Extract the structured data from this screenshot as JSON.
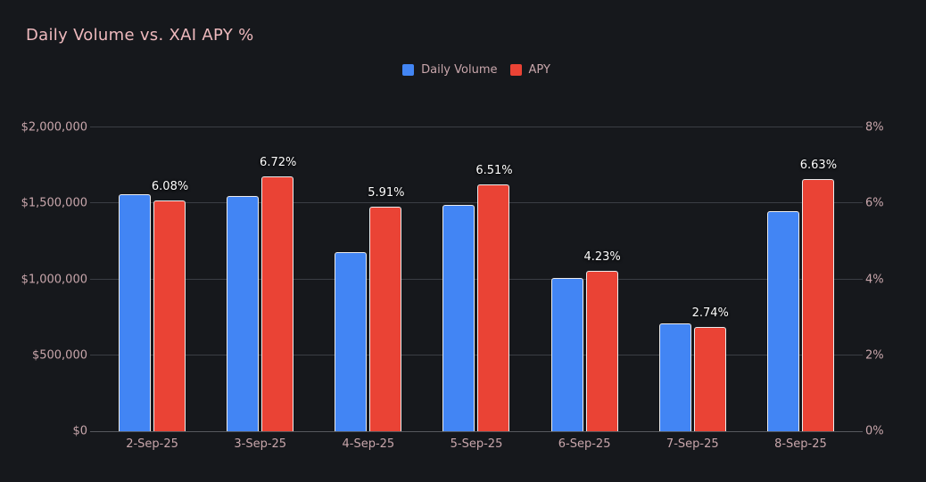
{
  "header": {
    "title": "Daily Volume vs. XAI APY %"
  },
  "legend": {
    "items": [
      {
        "label": "Daily Volume",
        "color": "#4285f4"
      },
      {
        "label": "APY",
        "color": "#ea4335"
      }
    ]
  },
  "colors": {
    "background": "#16181c",
    "title_text": "#eeb9bd",
    "axis_text": "#c8a6ab",
    "gridline": "#3b3e44",
    "axis_line": "#56595e",
    "volume_bar": "#4285f4",
    "apy_bar": "#ea4335",
    "bar_border": "#ebebec",
    "data_label_text": "#ffffff"
  },
  "chart_data": {
    "type": "bar",
    "title": "Daily Volume vs. XAI APY %",
    "categories": [
      "2-Sep-25",
      "3-Sep-25",
      "4-Sep-25",
      "5-Sep-25",
      "6-Sep-25",
      "7-Sep-25",
      "8-Sep-25"
    ],
    "series": [
      {
        "name": "Daily Volume",
        "axis": "left",
        "color": "#4285f4",
        "values": [
          1560000,
          1550000,
          1180000,
          1490000,
          1010000,
          710000,
          1450000
        ]
      },
      {
        "name": "APY",
        "axis": "right",
        "color": "#ea4335",
        "values": [
          6.08,
          6.72,
          5.91,
          6.51,
          4.23,
          2.74,
          6.63
        ],
        "data_labels": [
          "6.08%",
          "6.72%",
          "5.91%",
          "6.51%",
          "4.23%",
          "2.74%",
          "6.63%"
        ]
      }
    ],
    "left_axis": {
      "min": 0,
      "max": 2000000,
      "ticks": [
        "$0",
        "$500,000",
        "$1,000,000",
        "$1,500,000",
        "$2,000,000"
      ]
    },
    "right_axis": {
      "min": 0,
      "max": 8,
      "ticks": [
        "0%",
        "2%",
        "4%",
        "6%",
        "8%"
      ]
    },
    "grid": true,
    "legend_position": "top-center"
  }
}
